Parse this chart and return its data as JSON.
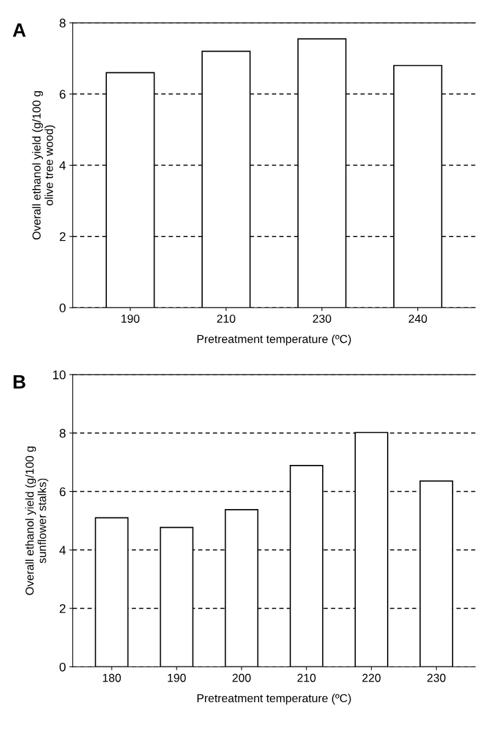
{
  "chart_data": [
    {
      "type": "bar",
      "title": "A",
      "categories": [
        "190",
        "210",
        "230",
        "240"
      ],
      "values": [
        6.6,
        7.2,
        7.55,
        6.8
      ],
      "color": "#ffffff",
      "xlabel": "Pretreatment temperature (ºC)",
      "ylabel": "Overall ethanol yield (g/100 g\nolive tree wood)",
      "ylim": [
        0,
        8
      ],
      "yticks": [
        0,
        2,
        4,
        6,
        8
      ],
      "grid": "y"
    },
    {
      "type": "bar",
      "title": "B",
      "categories": [
        "180",
        "190",
        "200",
        "210",
        "220",
        "230"
      ],
      "values": [
        5.1,
        4.77,
        5.38,
        6.89,
        8.02,
        6.36
      ],
      "color": "#ffffff",
      "xlabel": "Pretreatment temperature (ºC)",
      "ylabel": "Overall ethanol yield (g/100 g\nsunflower stalks)",
      "ylim": [
        0,
        10
      ],
      "yticks": [
        0,
        2,
        4,
        6,
        8,
        10
      ],
      "grid": "y"
    }
  ]
}
